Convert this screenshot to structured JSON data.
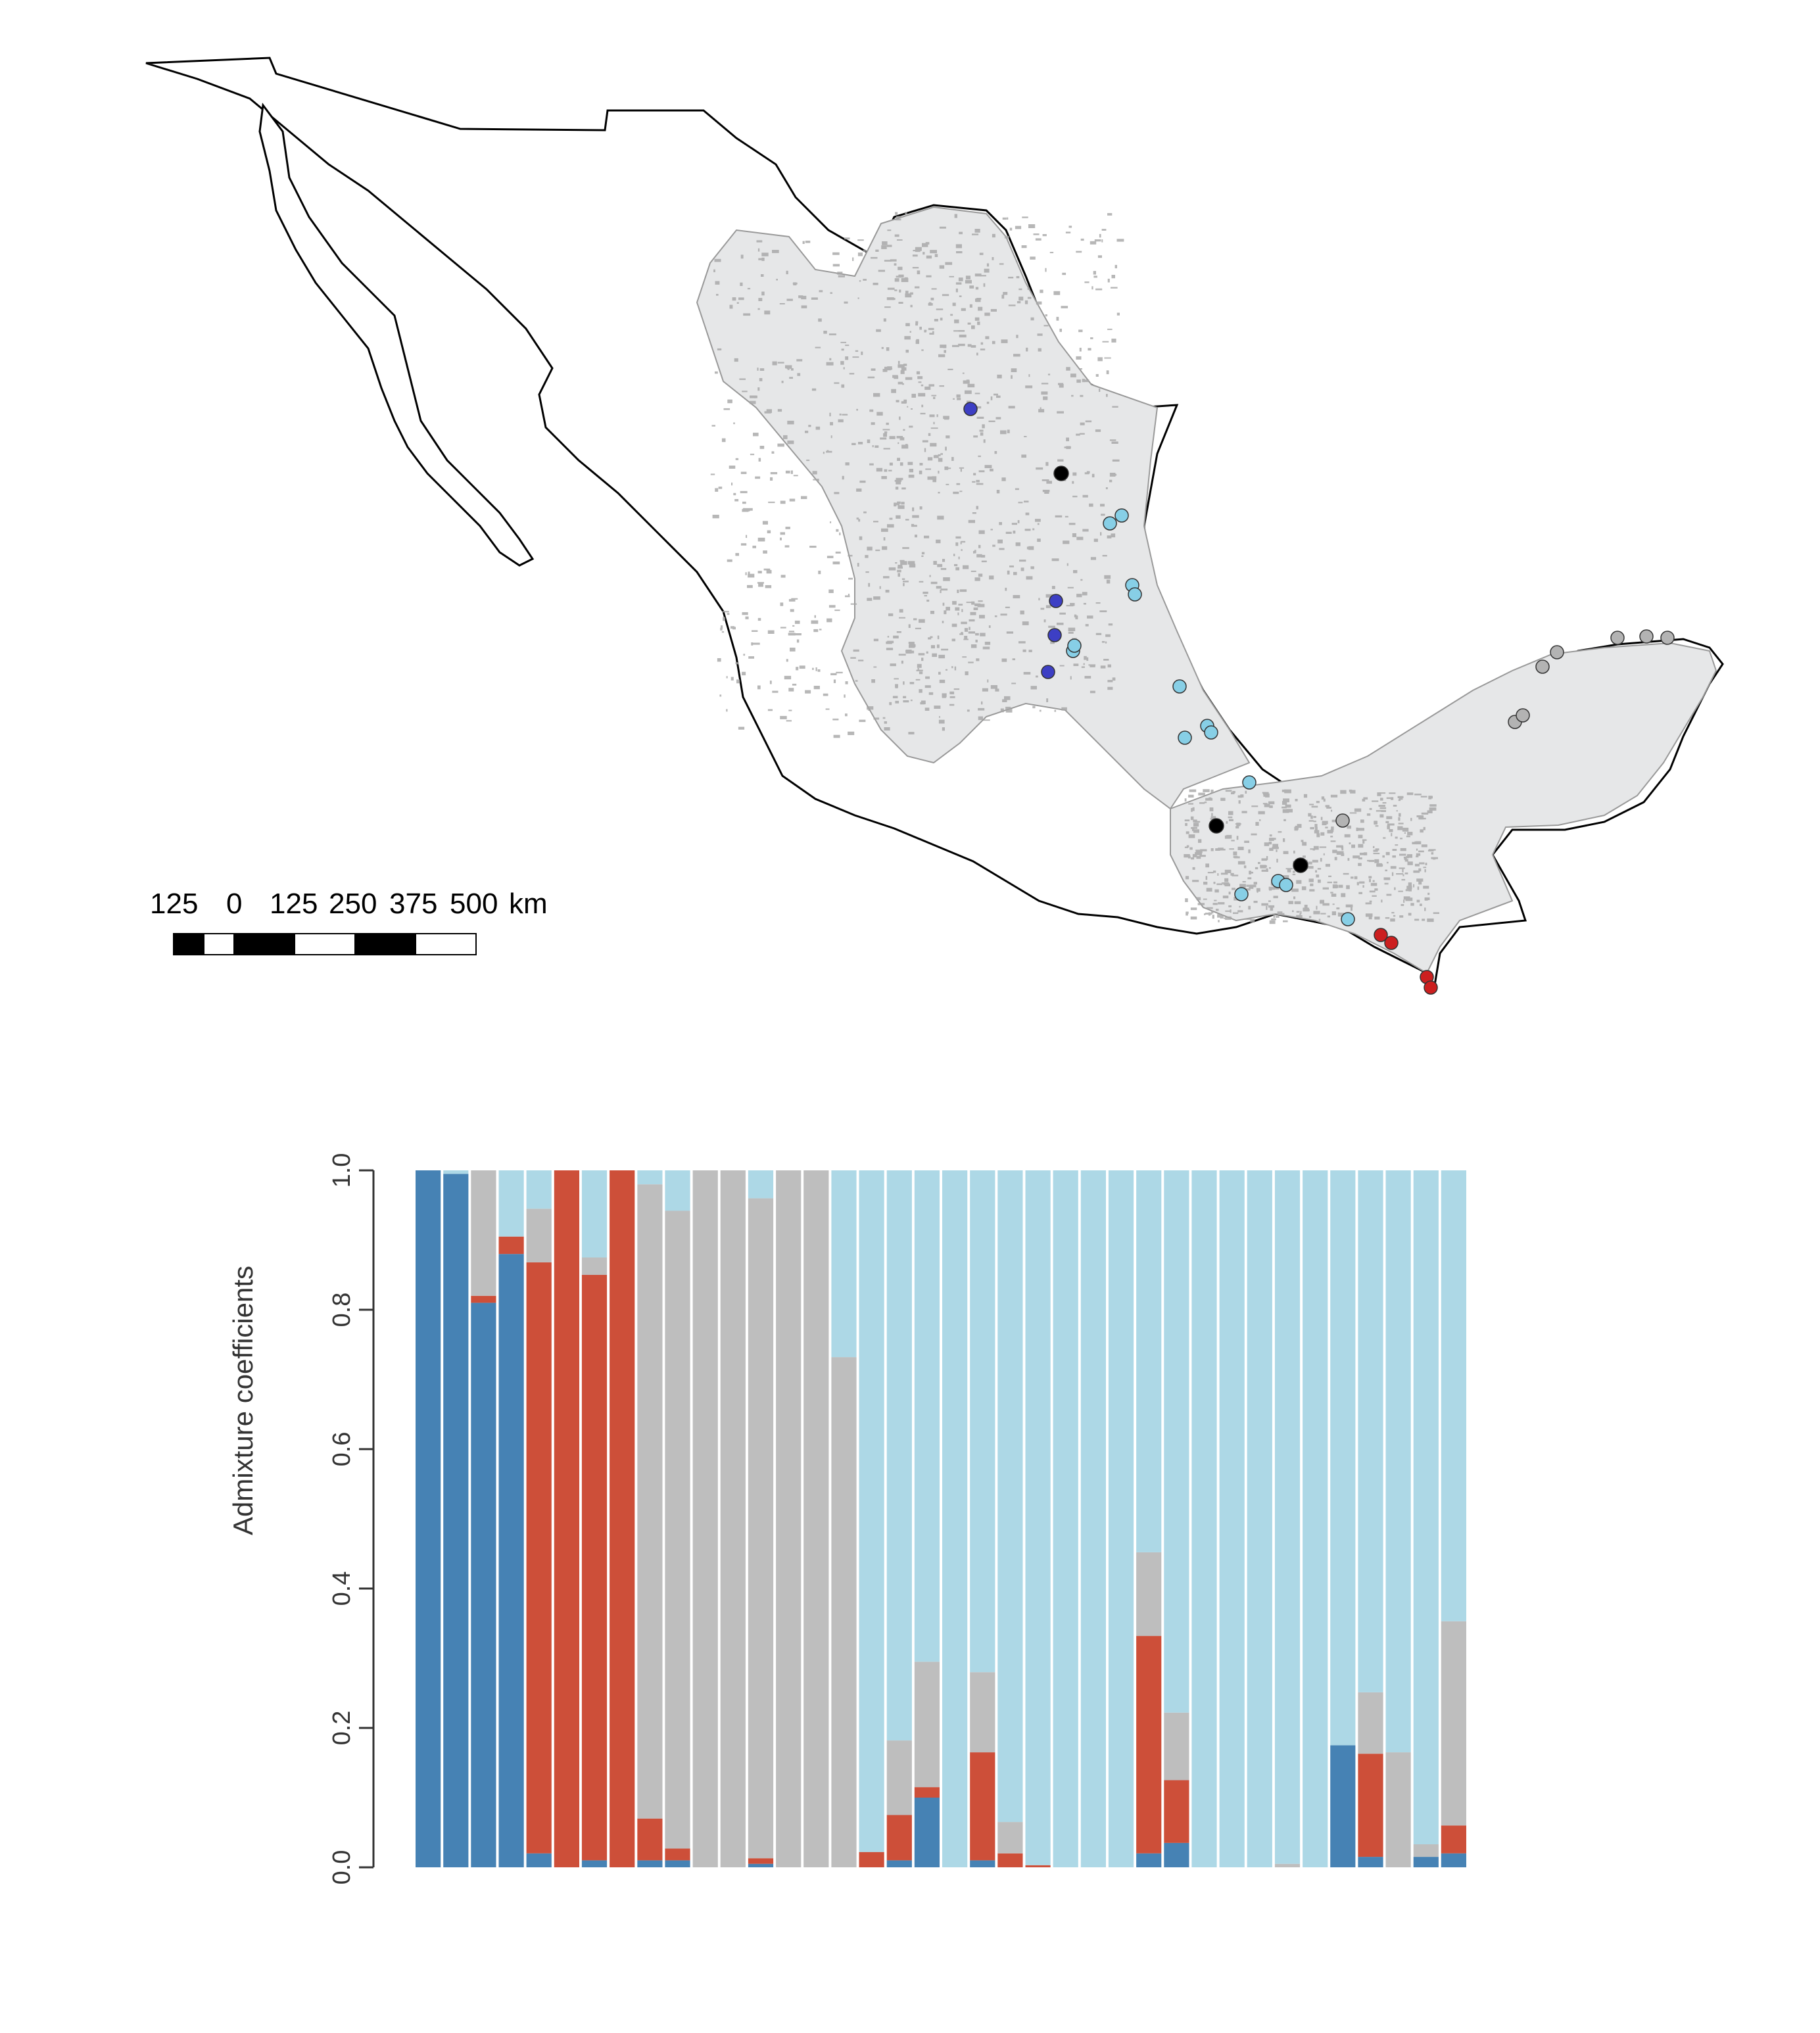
{
  "map": {
    "scale_bar": {
      "labels": [
        "125",
        "0",
        "125",
        "250",
        "375",
        "500"
      ],
      "unit": "km"
    },
    "legend_colors": {
      "cluster_dark_blue": "#3d3fc4",
      "cluster_light_blue": "#87cfe6",
      "cluster_gray": "#b3b3b3",
      "cluster_red": "#cc1f1f",
      "cluster_black": "#000000",
      "range_fill": "#e6e7e8",
      "terrain_fill": "#a6a6a6"
    }
  },
  "chart_data": {
    "type": "bar",
    "stacked": true,
    "ylabel": "Admixture coefficients",
    "ylim": [
      0,
      1
    ],
    "yticks": [
      "0.0",
      "0.2",
      "0.4",
      "0.6",
      "0.8",
      "1.0"
    ],
    "n_bars": 38,
    "series": [
      {
        "name": "",
        "color": "#4682b4",
        "values": [
          1.0,
          0.995,
          0.81,
          0.88,
          0.02,
          0.0,
          0.01,
          0.0,
          0.01,
          0.01,
          0.0,
          0.0,
          0.005,
          0.0,
          0.0,
          0.0,
          0.0,
          0.01,
          0.1,
          0.0,
          0.01,
          0.0,
          0.0,
          0.0,
          0.0,
          0.0,
          0.02,
          0.035,
          0.0,
          0.0,
          0.0,
          0.0,
          0.0,
          0.175,
          0.015,
          0.0,
          0.015,
          0.02
        ]
      },
      {
        "name": "",
        "color": "#cd4f39",
        "values": [
          0.0,
          0.0,
          0.01,
          0.025,
          0.848,
          1.0,
          0.84,
          1.0,
          0.06,
          0.017,
          0.0,
          0.0,
          0.008,
          0.0,
          0.0,
          0.0,
          0.022,
          0.065,
          0.015,
          0.0,
          0.155,
          0.02,
          0.003,
          0.0,
          0.0,
          0.0,
          0.312,
          0.09,
          0.0,
          0.0,
          0.0,
          0.0,
          0.0,
          0.0,
          0.148,
          0.0,
          0.0,
          0.04
        ]
      },
      {
        "name": "",
        "color": "#bebebe",
        "values": [
          0.0,
          0.0,
          0.18,
          0.0,
          0.077,
          0.0,
          0.025,
          0.0,
          0.91,
          0.915,
          1.0,
          1.0,
          0.947,
          1.0,
          1.0,
          0.732,
          0.0,
          0.107,
          0.18,
          0.0,
          0.115,
          0.045,
          0.0,
          0.0,
          0.0,
          0.0,
          0.12,
          0.097,
          0.0,
          0.0,
          0.0,
          0.005,
          0.0,
          0.0,
          0.088,
          0.165,
          0.018,
          0.293
        ]
      },
      {
        "name": "",
        "color": "#add8e6",
        "values": [
          0.0,
          0.005,
          0.0,
          0.095,
          0.055,
          0.0,
          0.125,
          0.0,
          0.02,
          0.058,
          0.0,
          0.0,
          0.04,
          0.0,
          0.0,
          0.268,
          0.978,
          0.818,
          0.705,
          1.0,
          0.72,
          0.935,
          0.997,
          1.0,
          1.0,
          1.0,
          0.548,
          0.778,
          1.0,
          1.0,
          1.0,
          0.995,
          1.0,
          0.825,
          0.749,
          0.835,
          0.967,
          0.647
        ]
      }
    ]
  }
}
